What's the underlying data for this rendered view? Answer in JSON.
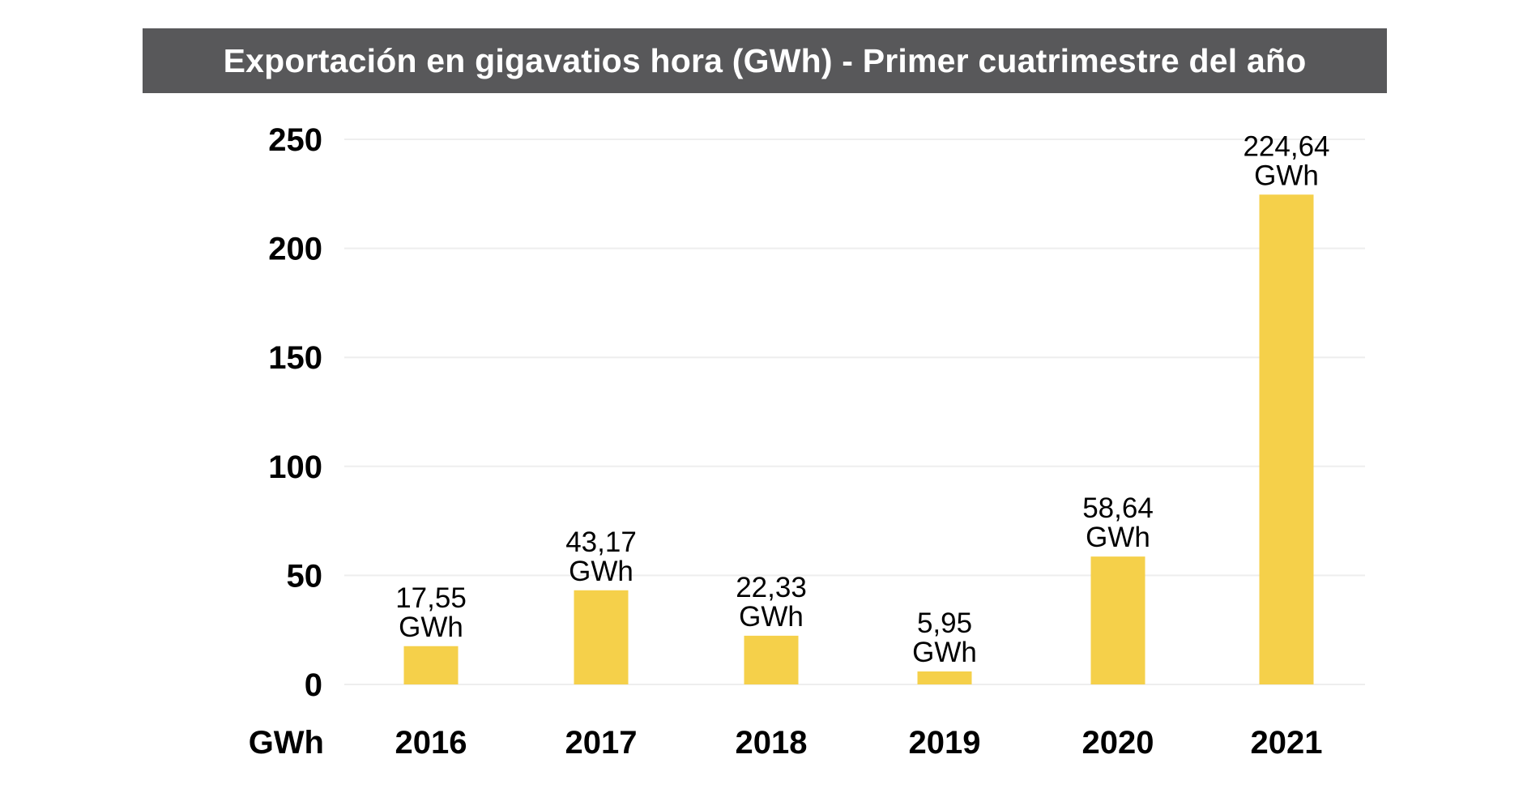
{
  "chart_data": {
    "type": "bar",
    "title": "Exportación en gigavatios hora (GWh) - Primer cuatrimestre del año",
    "xlabel": "",
    "ylabel": "GWh",
    "unit_label": "GWh",
    "categories": [
      "2016",
      "2017",
      "2018",
      "2019",
      "2020",
      "2021"
    ],
    "values": [
      17.55,
      43.17,
      22.33,
      5.95,
      58.64,
      224.64
    ],
    "data_labels": [
      {
        "value": "17,55",
        "unit": "GWh"
      },
      {
        "value": "43,17",
        "unit": "GWh"
      },
      {
        "value": "22,33",
        "unit": "GWh"
      },
      {
        "value": "5,95",
        "unit": "GWh"
      },
      {
        "value": "58,64",
        "unit": "GWh"
      },
      {
        "value": "224,64",
        "unit": "GWh"
      }
    ],
    "yticks": [
      "0",
      "50",
      "100",
      "150",
      "200",
      "250"
    ],
    "ytick_values": [
      0,
      50,
      100,
      150,
      200,
      250
    ],
    "ylim": [
      0,
      250
    ],
    "grid": true,
    "legend": "none",
    "colors": {
      "bar": "#f5d04a",
      "title_bg": "#58585a",
      "title_text": "#ffffff",
      "grid": "#eeeeee",
      "text": "#000000"
    }
  }
}
